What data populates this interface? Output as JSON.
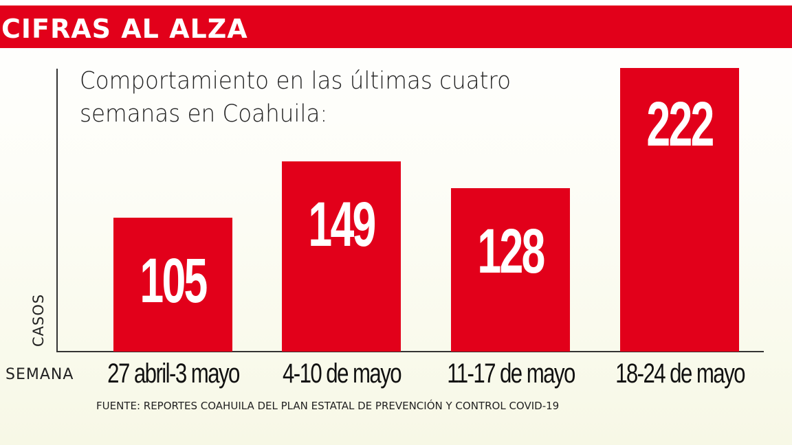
{
  "header": {
    "title": "CIFRAS AL ALZA"
  },
  "chart": {
    "subtitle": "Comportamiento en las últimas cuatro semanas en Coahuila:",
    "ylabel": "CASOS",
    "xlabel": "SEMANA",
    "source": "FUENTE: REPORTES COAHUILA DEL PLAN ESTATAL DE PREVENCIÓN Y CONTROL COVID-19",
    "bar_color": "#e2001a",
    "title_color": "#e2001a"
  },
  "bars": [
    {
      "label": "27 abril-3 mayo",
      "value": "105"
    },
    {
      "label": "4-10 de mayo",
      "value": "149"
    },
    {
      "label": "11-17 de mayo",
      "value": "128"
    },
    {
      "label": "18-24 de mayo",
      "value": "222"
    }
  ],
  "chart_data": {
    "type": "bar",
    "title": "CIFRAS AL ALZA",
    "subtitle": "Comportamiento en las últimas cuatro semanas en Coahuila:",
    "categories": [
      "27 abril-3 mayo",
      "4-10 de mayo",
      "11-17 de mayo",
      "18-24 de mayo"
    ],
    "values": [
      105,
      149,
      128,
      222
    ],
    "xlabel": "SEMANA",
    "ylabel": "CASOS",
    "ylim": [
      0,
      222
    ],
    "grid": false,
    "legend": null,
    "data_labels": true,
    "source": "FUENTE: REPORTES COAHUILA DEL PLAN ESTATAL DE PREVENCIÓN Y CONTROL COVID-19"
  }
}
